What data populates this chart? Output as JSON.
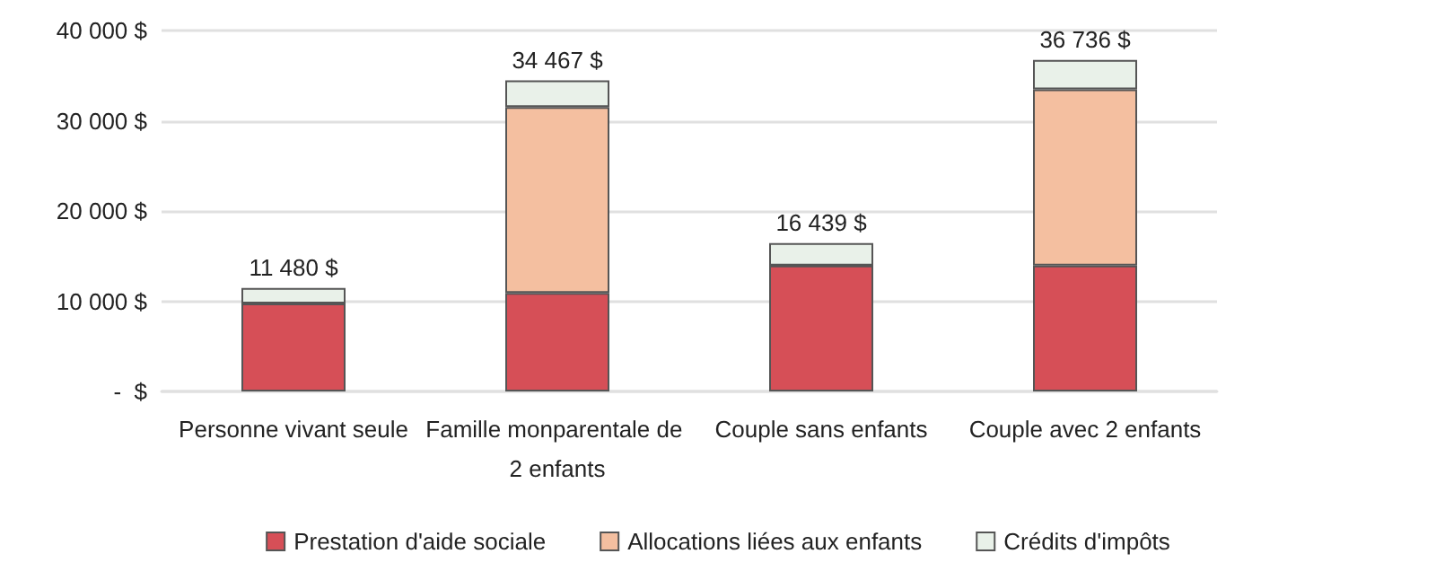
{
  "chart_data": {
    "type": "bar",
    "stacked": true,
    "categories": [
      "Personne vivant seule",
      "Famille monparentale de 2 enfants",
      "Couple sans enfants",
      "Couple avec 2 enfants"
    ],
    "series": [
      {
        "name": "Prestation d'aide sociale",
        "color": "#d64f57",
        "values": [
          9740,
          10920,
          13950,
          13950
        ]
      },
      {
        "name": "Allocations liées aux enfants",
        "color": "#f4bfa0",
        "values": [
          0,
          20590,
          0,
          19540
        ]
      },
      {
        "name": "Crédits d'impôts",
        "color": "#e9f1e9",
        "values": [
          1740,
          2957,
          2489,
          3246
        ]
      }
    ],
    "totals": [
      "11 480 $",
      "34 467 $",
      "16 439 $",
      "36 736 $"
    ],
    "ylim": [
      0,
      40000
    ],
    "yticks": [
      {
        "value": 0,
        "label": "-  $"
      },
      {
        "value": 10000,
        "label": "10 000 $"
      },
      {
        "value": 20000,
        "label": "20 000 $"
      },
      {
        "value": 30000,
        "label": "30 000 $"
      },
      {
        "value": 40000,
        "label": "40 000 $"
      }
    ],
    "grid": "y",
    "legend": "bottom"
  }
}
